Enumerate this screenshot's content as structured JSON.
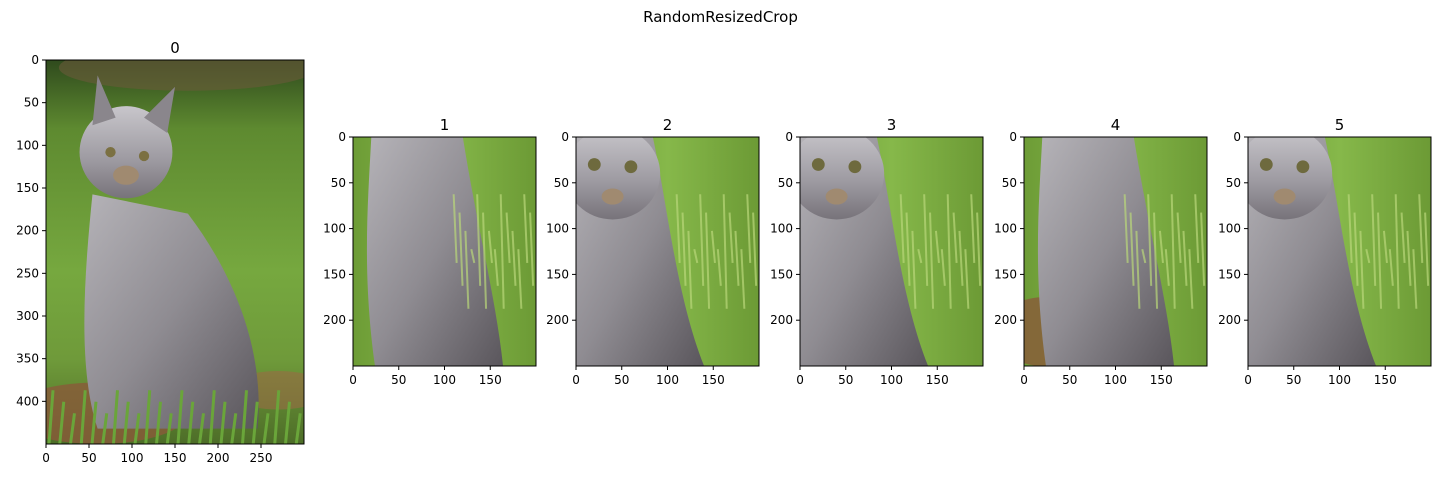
{
  "suptitle": "RandomResizedCrop",
  "colors": {
    "background": "#ffffff",
    "axis": "#000000",
    "grass_dark": "#3f6d22",
    "grass_light": "#7fb84a",
    "soil": "#8a5a3a",
    "fur_light": "#b5b3b8",
    "fur_mid": "#8f8c92",
    "fur_dark": "#5a565c",
    "face_tan": "#a08a70"
  },
  "chart_data": [
    {
      "type": "image",
      "title": "0",
      "image_size": {
        "width": 300,
        "height": 450
      },
      "xlim": [
        0,
        300
      ],
      "ylim": [
        450,
        0
      ],
      "xticks": [
        0,
        50,
        100,
        150,
        200,
        250
      ],
      "yticks": [
        0,
        50,
        100,
        150,
        200,
        250,
        300,
        350,
        400
      ],
      "content": "lynx-full"
    },
    {
      "type": "image",
      "title": "1",
      "image_size": {
        "width": 200,
        "height": 250
      },
      "xlim": [
        0,
        200
      ],
      "ylim": [
        250,
        0
      ],
      "xticks": [
        0,
        50,
        100,
        150
      ],
      "yticks": [
        0,
        50,
        100,
        150,
        200
      ],
      "content": "lynx-body-crop"
    },
    {
      "type": "image",
      "title": "2",
      "image_size": {
        "width": 200,
        "height": 250
      },
      "xlim": [
        0,
        200
      ],
      "ylim": [
        250,
        0
      ],
      "xticks": [
        0,
        50,
        100,
        150
      ],
      "yticks": [
        0,
        50,
        100,
        150,
        200
      ],
      "content": "lynx-face-crop"
    },
    {
      "type": "image",
      "title": "3",
      "image_size": {
        "width": 200,
        "height": 250
      },
      "xlim": [
        0,
        200
      ],
      "ylim": [
        250,
        0
      ],
      "xticks": [
        0,
        50,
        100,
        150
      ],
      "yticks": [
        0,
        50,
        100,
        150,
        200
      ],
      "content": "lynx-face-crop"
    },
    {
      "type": "image",
      "title": "4",
      "image_size": {
        "width": 200,
        "height": 250
      },
      "xlim": [
        0,
        200
      ],
      "ylim": [
        250,
        0
      ],
      "xticks": [
        0,
        50,
        100,
        150
      ],
      "yticks": [
        0,
        50,
        100,
        150,
        200
      ],
      "content": "lynx-body-crop-soil"
    },
    {
      "type": "image",
      "title": "5",
      "image_size": {
        "width": 200,
        "height": 250
      },
      "xlim": [
        0,
        200
      ],
      "ylim": [
        250,
        0
      ],
      "xticks": [
        0,
        50,
        100,
        150
      ],
      "yticks": [
        0,
        50,
        100,
        150,
        200
      ],
      "content": "lynx-face-crop"
    }
  ]
}
